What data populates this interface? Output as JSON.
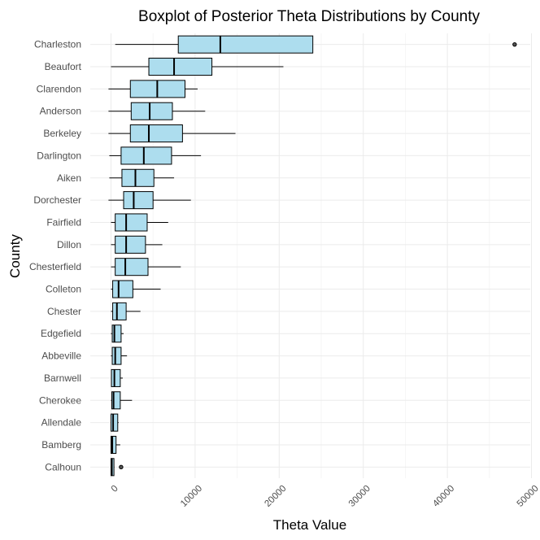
{
  "chart_data": {
    "type": "boxplot",
    "orientation": "horizontal",
    "title": "Boxplot of Posterior Theta Distributions by County",
    "xlabel": "Theta Value",
    "ylabel": "County",
    "xlim": [
      -1500,
      50500
    ],
    "xticks": [
      0,
      10000,
      20000,
      30000,
      40000,
      50000
    ],
    "xtick_labels": [
      "0",
      "10000",
      "20000",
      "30000",
      "40000",
      "50000"
    ],
    "box_fill": "#ADDDEE",
    "grid": true,
    "series": [
      {
        "name": "Charleston",
        "whisker_low": 500,
        "q1": 8000,
        "median": 13000,
        "q3": 24000,
        "whisker_high": 24000,
        "outliers": [
          48000
        ]
      },
      {
        "name": "Beaufort",
        "whisker_low": 0,
        "q1": 4500,
        "median": 7500,
        "q3": 12000,
        "whisker_high": 20500,
        "outliers": []
      },
      {
        "name": "Clarendon",
        "whisker_low": -300,
        "q1": 2300,
        "median": 5500,
        "q3": 8800,
        "whisker_high": 10300,
        "outliers": []
      },
      {
        "name": "Anderson",
        "whisker_low": -300,
        "q1": 2400,
        "median": 4600,
        "q3": 7300,
        "whisker_high": 11200,
        "outliers": []
      },
      {
        "name": "Berkeley",
        "whisker_low": -300,
        "q1": 2300,
        "median": 4500,
        "q3": 8500,
        "whisker_high": 14800,
        "outliers": []
      },
      {
        "name": "Darlington",
        "whisker_low": -200,
        "q1": 1200,
        "median": 3900,
        "q3": 7200,
        "whisker_high": 10700,
        "outliers": []
      },
      {
        "name": "Aiken",
        "whisker_low": -200,
        "q1": 1300,
        "median": 2900,
        "q3": 5100,
        "whisker_high": 7500,
        "outliers": []
      },
      {
        "name": "Dorchester",
        "whisker_low": -300,
        "q1": 1500,
        "median": 2700,
        "q3": 5000,
        "whisker_high": 9500,
        "outliers": []
      },
      {
        "name": "Fairfield",
        "whisker_low": 0,
        "q1": 500,
        "median": 1800,
        "q3": 4300,
        "whisker_high": 6800,
        "outliers": []
      },
      {
        "name": "Dillon",
        "whisker_low": 0,
        "q1": 500,
        "median": 1800,
        "q3": 4100,
        "whisker_high": 6100,
        "outliers": []
      },
      {
        "name": "Chesterfield",
        "whisker_low": 0,
        "q1": 500,
        "median": 1700,
        "q3": 4400,
        "whisker_high": 8300,
        "outliers": []
      },
      {
        "name": "Colleton",
        "whisker_low": 0,
        "q1": 200,
        "median": 900,
        "q3": 2600,
        "whisker_high": 5900,
        "outliers": []
      },
      {
        "name": "Chester",
        "whisker_low": 0,
        "q1": 200,
        "median": 700,
        "q3": 1800,
        "whisker_high": 3500,
        "outliers": []
      },
      {
        "name": "Edgefield",
        "whisker_low": 0,
        "q1": 150,
        "median": 400,
        "q3": 1200,
        "whisker_high": 1500,
        "outliers": []
      },
      {
        "name": "Abbeville",
        "whisker_low": 0,
        "q1": 150,
        "median": 500,
        "q3": 1200,
        "whisker_high": 1900,
        "outliers": []
      },
      {
        "name": "Barnwell",
        "whisker_low": 0,
        "q1": 50,
        "median": 400,
        "q3": 1100,
        "whisker_high": 1400,
        "outliers": []
      },
      {
        "name": "Cherokee",
        "whisker_low": 0,
        "q1": 100,
        "median": 300,
        "q3": 1100,
        "whisker_high": 2500,
        "outliers": []
      },
      {
        "name": "Allendale",
        "whisker_low": 0,
        "q1": 0,
        "median": 250,
        "q3": 800,
        "whisker_high": 900,
        "outliers": []
      },
      {
        "name": "Bamberg",
        "whisker_low": 0,
        "q1": 0,
        "median": 150,
        "q3": 600,
        "whisker_high": 1100,
        "outliers": []
      },
      {
        "name": "Calhoun",
        "whisker_low": 0,
        "q1": 0,
        "median": 100,
        "q3": 350,
        "whisker_high": 400,
        "outliers": [
          1200
        ]
      }
    ]
  }
}
